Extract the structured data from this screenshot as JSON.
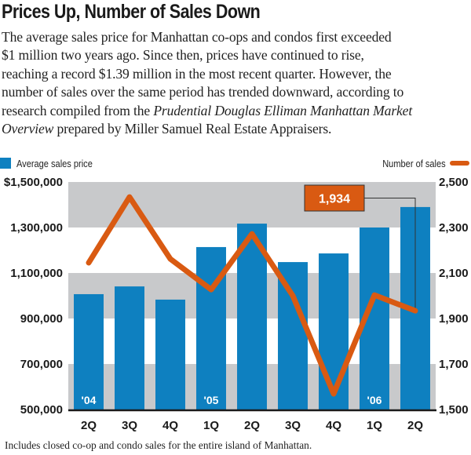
{
  "headline": "Prices Up, Number of Sales Down",
  "intro": {
    "lines": [
      "The average sales price for Manhattan co-ops and condos first exceeded",
      "$1 million two years ago. Since then, prices have continued to rise,",
      "reaching a record $1.39 million in the most recent quarter. However, the",
      "number of sales over the same period has trended downward, according to"
    ],
    "line5_prefix": "research compiled from the ",
    "line5_italic": "Prudential Douglas Elliman Manhattan Market",
    "line6_italic": "Overview",
    "line6_suffix": " prepared by Miller Samuel Real Estate Appraisers."
  },
  "footnote": "Includes closed co-op and condo sales for the entire island of Manhattan.",
  "colors": {
    "bar": "#0e80c0",
    "line": "#d95a12",
    "band": "#c8c9cb",
    "callout_bg": "#d95a12"
  },
  "chart_data": {
    "type": "bar",
    "title": "Prices Up, Number of Sales Down",
    "categories": [
      "2Q",
      "3Q",
      "4Q",
      "1Q",
      "2Q",
      "3Q",
      "4Q",
      "1Q",
      "2Q"
    ],
    "year_labels": [
      {
        "index": 0,
        "label": "'04"
      },
      {
        "index": 3,
        "label": "'05"
      },
      {
        "index": 7,
        "label": "'06"
      }
    ],
    "series": [
      {
        "name": "Average sales price",
        "type": "bar",
        "axis": "left",
        "values": [
          1007000,
          1041000,
          983000,
          1214000,
          1317000,
          1148000,
          1186000,
          1300000,
          1390000
        ]
      },
      {
        "name": "Number of sales",
        "type": "line",
        "axis": "right",
        "values": [
          2145,
          2434,
          2162,
          2027,
          2272,
          2000,
          1569,
          2003,
          1934
        ]
      }
    ],
    "left_axis": {
      "range": [
        500000,
        1500000
      ],
      "ticks": [
        500000,
        700000,
        900000,
        1100000,
        1300000,
        1500000
      ],
      "tick_labels": [
        "500,000",
        "700,000",
        "900,000",
        "1,100,000",
        "1,300,000",
        "$1,500,000"
      ]
    },
    "right_axis": {
      "range": [
        1500,
        2500
      ],
      "ticks": [
        1500,
        1700,
        1900,
        2100,
        2300,
        2500
      ],
      "tick_labels": [
        "1,500",
        "1,700",
        "1,900",
        "2,100",
        "2,300",
        "2,500"
      ]
    },
    "annotation": {
      "index": 8,
      "series": "Number of sales",
      "label": "1,934"
    },
    "legend": [
      {
        "label": "Average sales price",
        "placement": "top-left"
      },
      {
        "label": "Number of sales",
        "placement": "top-right"
      }
    ],
    "grid": "alternating horizontal bands"
  }
}
